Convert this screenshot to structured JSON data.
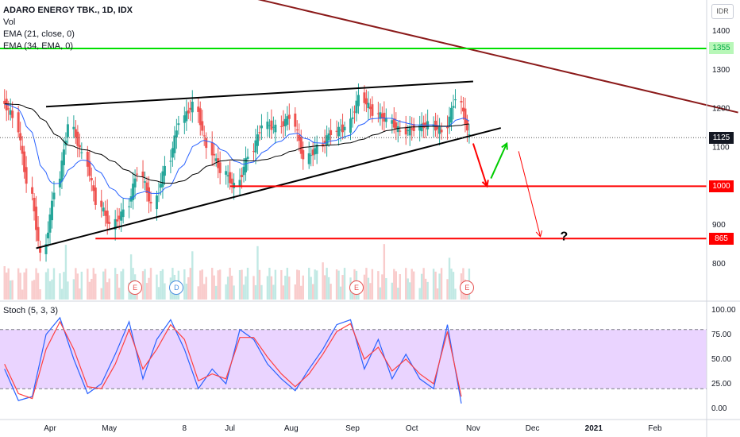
{
  "header": {
    "title": "ADARO ENERGY TBK., 1D, IDX",
    "indicators": [
      "Vol",
      "EMA (21, close, 0)",
      "EMA (34, EMA, 0)"
    ]
  },
  "currency_badge": "IDR",
  "stoch_label": "Stoch (5, 3, 3)",
  "question_mark": "?",
  "events": [
    {
      "label": "E",
      "date": "2020-05-14",
      "color": "#e55353"
    },
    {
      "label": "D",
      "date": "2020-06-04",
      "color": "#4c8fe0"
    },
    {
      "label": "E",
      "date": "2020-09-03",
      "color": "#e55353"
    },
    {
      "label": "E",
      "date": "2020-10-29",
      "color": "#e55353"
    }
  ],
  "chart_data": {
    "type": "candlestick",
    "title": "ADARO ENERGY TBK., 1D, IDX",
    "price_axis": {
      "ticks": [
        800,
        900,
        1000,
        1100,
        1200,
        1300,
        1400
      ],
      "range": [
        730,
        1480
      ]
    },
    "time_axis": {
      "labels": [
        {
          "text": "Apr",
          "date": "2020-04-01"
        },
        {
          "text": "May",
          "date": "2020-05-01"
        },
        {
          "text": "8",
          "date": "2020-06-08"
        },
        {
          "text": "Jul",
          "date": "2020-07-01"
        },
        {
          "text": "Aug",
          "date": "2020-08-01"
        },
        {
          "text": "Sep",
          "date": "2020-09-01"
        },
        {
          "text": "Oct",
          "date": "2020-10-01"
        },
        {
          "text": "Nov",
          "date": "2020-11-01"
        },
        {
          "text": "Dec",
          "date": "2020-12-01"
        },
        {
          "text": "2021",
          "date": "2021-01-01"
        },
        {
          "text": "Feb",
          "date": "2021-02-01"
        }
      ]
    },
    "price_labels": [
      {
        "value": 1355,
        "text": "1355",
        "color": "#00e000"
      },
      {
        "value": 1125,
        "text": "1125",
        "color": "#131722"
      },
      {
        "value": 1000,
        "text": "1000",
        "color": "#ff0000"
      },
      {
        "value": 865,
        "text": "865",
        "color": "#ff0000"
      }
    ],
    "weekly_closes": [
      {
        "date": "2020-03-09",
        "close": 1180
      },
      {
        "date": "2020-03-16",
        "close": 1010
      },
      {
        "date": "2020-03-23",
        "close": 820
      },
      {
        "date": "2020-03-30",
        "close": 990
      },
      {
        "date": "2020-04-06",
        "close": 1160
      },
      {
        "date": "2020-04-13",
        "close": 1080
      },
      {
        "date": "2020-04-20",
        "close": 960
      },
      {
        "date": "2020-04-27",
        "close": 900
      },
      {
        "date": "2020-05-04",
        "close": 935
      },
      {
        "date": "2020-05-11",
        "close": 1040
      },
      {
        "date": "2020-05-18",
        "close": 950
      },
      {
        "date": "2020-05-25",
        "close": 1050
      },
      {
        "date": "2020-06-01",
        "close": 1170
      },
      {
        "date": "2020-06-08",
        "close": 1210
      },
      {
        "date": "2020-06-15",
        "close": 1100
      },
      {
        "date": "2020-06-22",
        "close": 1040
      },
      {
        "date": "2020-06-29",
        "close": 1000
      },
      {
        "date": "2020-07-06",
        "close": 1080
      },
      {
        "date": "2020-07-13",
        "close": 1160
      },
      {
        "date": "2020-07-20",
        "close": 1150
      },
      {
        "date": "2020-07-27",
        "close": 1180
      },
      {
        "date": "2020-08-03",
        "close": 1070
      },
      {
        "date": "2020-08-10",
        "close": 1100
      },
      {
        "date": "2020-08-17",
        "close": 1140
      },
      {
        "date": "2020-08-24",
        "close": 1150
      },
      {
        "date": "2020-08-31",
        "close": 1230
      },
      {
        "date": "2020-09-07",
        "close": 1190
      },
      {
        "date": "2020-09-14",
        "close": 1170
      },
      {
        "date": "2020-09-21",
        "close": 1140
      },
      {
        "date": "2020-09-28",
        "close": 1150
      },
      {
        "date": "2020-10-05",
        "close": 1160
      },
      {
        "date": "2020-10-12",
        "close": 1140
      },
      {
        "date": "2020-10-19",
        "close": 1230
      },
      {
        "date": "2020-10-26",
        "close": 1125
      }
    ],
    "volume_note": "volume histogram bars along bottom of price pane",
    "stochastic": {
      "name": "Stoch (5, 3, 3)",
      "ticks": [
        0.0,
        25.0,
        50.0,
        75.0,
        100.0
      ],
      "bands": [
        20,
        80
      ],
      "k_series": [
        {
          "date": "2020-03-09",
          "value": 40
        },
        {
          "date": "2020-03-16",
          "value": 8
        },
        {
          "date": "2020-03-23",
          "value": 12
        },
        {
          "date": "2020-03-30",
          "value": 75
        },
        {
          "date": "2020-04-06",
          "value": 92
        },
        {
          "date": "2020-04-13",
          "value": 50
        },
        {
          "date": "2020-04-20",
          "value": 15
        },
        {
          "date": "2020-04-27",
          "value": 25
        },
        {
          "date": "2020-05-04",
          "value": 55
        },
        {
          "date": "2020-05-11",
          "value": 88
        },
        {
          "date": "2020-05-18",
          "value": 30
        },
        {
          "date": "2020-05-25",
          "value": 70
        },
        {
          "date": "2020-06-01",
          "value": 90
        },
        {
          "date": "2020-06-08",
          "value": 60
        },
        {
          "date": "2020-06-15",
          "value": 20
        },
        {
          "date": "2020-06-22",
          "value": 40
        },
        {
          "date": "2020-06-29",
          "value": 25
        },
        {
          "date": "2020-07-06",
          "value": 80
        },
        {
          "date": "2020-07-13",
          "value": 70
        },
        {
          "date": "2020-07-20",
          "value": 45
        },
        {
          "date": "2020-07-27",
          "value": 30
        },
        {
          "date": "2020-08-03",
          "value": 18
        },
        {
          "date": "2020-08-10",
          "value": 40
        },
        {
          "date": "2020-08-17",
          "value": 60
        },
        {
          "date": "2020-08-24",
          "value": 85
        },
        {
          "date": "2020-08-31",
          "value": 90
        },
        {
          "date": "2020-09-07",
          "value": 40
        },
        {
          "date": "2020-09-14",
          "value": 70
        },
        {
          "date": "2020-09-21",
          "value": 30
        },
        {
          "date": "2020-09-28",
          "value": 55
        },
        {
          "date": "2020-10-05",
          "value": 30
        },
        {
          "date": "2020-10-12",
          "value": 20
        },
        {
          "date": "2020-10-19",
          "value": 85
        },
        {
          "date": "2020-10-26",
          "value": 5
        }
      ],
      "d_series": [
        {
          "date": "2020-03-09",
          "value": 45
        },
        {
          "date": "2020-03-16",
          "value": 15
        },
        {
          "date": "2020-03-23",
          "value": 10
        },
        {
          "date": "2020-03-30",
          "value": 60
        },
        {
          "date": "2020-04-06",
          "value": 88
        },
        {
          "date": "2020-04-13",
          "value": 60
        },
        {
          "date": "2020-04-20",
          "value": 22
        },
        {
          "date": "2020-04-27",
          "value": 20
        },
        {
          "date": "2020-05-04",
          "value": 45
        },
        {
          "date": "2020-05-11",
          "value": 80
        },
        {
          "date": "2020-05-18",
          "value": 40
        },
        {
          "date": "2020-05-25",
          "value": 60
        },
        {
          "date": "2020-06-01",
          "value": 85
        },
        {
          "date": "2020-06-08",
          "value": 70
        },
        {
          "date": "2020-06-15",
          "value": 28
        },
        {
          "date": "2020-06-22",
          "value": 35
        },
        {
          "date": "2020-06-29",
          "value": 30
        },
        {
          "date": "2020-07-06",
          "value": 72
        },
        {
          "date": "2020-07-13",
          "value": 72
        },
        {
          "date": "2020-07-20",
          "value": 52
        },
        {
          "date": "2020-07-27",
          "value": 35
        },
        {
          "date": "2020-08-03",
          "value": 22
        },
        {
          "date": "2020-08-10",
          "value": 35
        },
        {
          "date": "2020-08-17",
          "value": 55
        },
        {
          "date": "2020-08-24",
          "value": 78
        },
        {
          "date": "2020-08-31",
          "value": 86
        },
        {
          "date": "2020-09-07",
          "value": 50
        },
        {
          "date": "2020-09-14",
          "value": 62
        },
        {
          "date": "2020-09-21",
          "value": 38
        },
        {
          "date": "2020-09-28",
          "value": 50
        },
        {
          "date": "2020-10-05",
          "value": 35
        },
        {
          "date": "2020-10-12",
          "value": 25
        },
        {
          "date": "2020-10-19",
          "value": 78
        },
        {
          "date": "2020-10-26",
          "value": 12
        }
      ]
    },
    "drawings": [
      {
        "kind": "trendline",
        "color": "#000000",
        "from": {
          "date": "2020-03-30",
          "price": 1205
        },
        "to": {
          "date": "2020-11-01",
          "price": 1270
        }
      },
      {
        "kind": "trendline",
        "color": "#000000",
        "from": {
          "date": "2020-03-25",
          "price": 840
        },
        "to": {
          "date": "2020-11-15",
          "price": 1150
        }
      },
      {
        "kind": "trendline",
        "color": "#8b1a1a",
        "from": {
          "date": "2020-06-30",
          "price": 1500
        },
        "to": {
          "date": "2021-03-15",
          "price": 1190
        }
      },
      {
        "kind": "horizontal",
        "color": "#00e000",
        "price": 1355
      },
      {
        "kind": "horizontal",
        "color": "#ff0000",
        "price": 1000,
        "from_date": "2020-07-01"
      },
      {
        "kind": "horizontal",
        "color": "#ff0000",
        "price": 865,
        "from_date": "2020-04-24"
      },
      {
        "kind": "arrow",
        "color": "#ff0000",
        "from": {
          "date": "2020-11-01",
          "price": 1110
        },
        "to": {
          "date": "2020-11-08",
          "price": 1000
        }
      },
      {
        "kind": "arrow",
        "color": "#00cc00",
        "from": {
          "date": "2020-11-10",
          "price": 1020
        },
        "to": {
          "date": "2020-11-18",
          "price": 1110
        }
      },
      {
        "kind": "arrow",
        "color": "#ff0000",
        "from": {
          "date": "2020-11-24",
          "price": 1090
        },
        "to": {
          "date": "2020-12-05",
          "price": 870
        }
      }
    ]
  }
}
